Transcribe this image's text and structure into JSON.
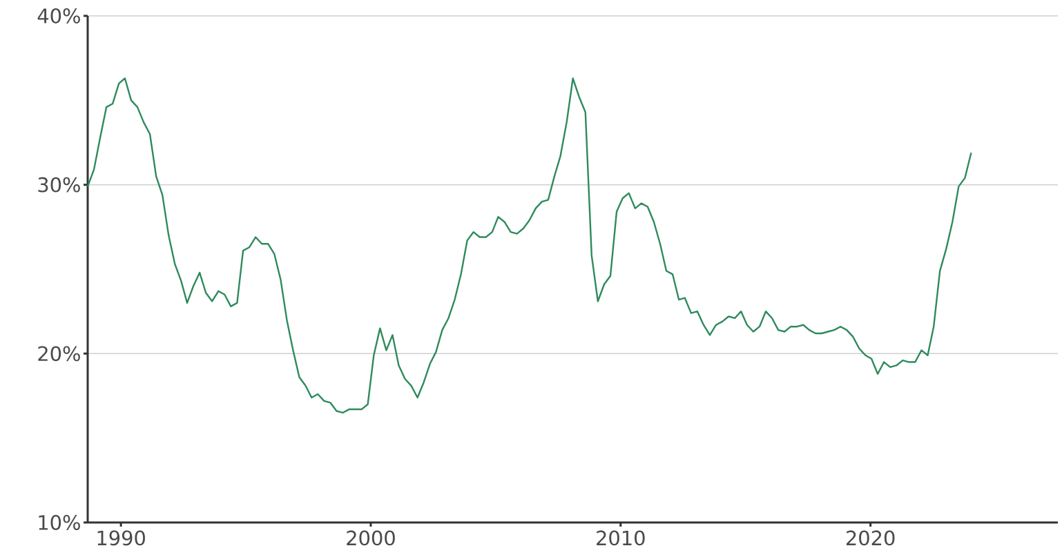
{
  "chart_data": {
    "type": "line",
    "x": [
      1988.67,
      1988.92,
      1989.17,
      1989.42,
      1989.67,
      1989.92,
      1990.16,
      1990.41,
      1990.66,
      1990.91,
      1991.16,
      1991.41,
      1991.66,
      1991.91,
      1992.16,
      1992.41,
      1992.65,
      1992.9,
      1993.15,
      1993.4,
      1993.65,
      1993.9,
      1994.15,
      1994.4,
      1994.65,
      1994.89,
      1995.14,
      1995.39,
      1995.64,
      1995.89,
      1996.14,
      1996.39,
      1996.64,
      1996.89,
      1997.14,
      1997.39,
      1997.63,
      1997.88,
      1998.13,
      1998.38,
      1998.63,
      1998.88,
      1999.13,
      1999.38,
      1999.63,
      1999.88,
      2000.12,
      2000.37,
      2000.62,
      2000.87,
      2001.12,
      2001.37,
      2001.62,
      2001.87,
      2002.12,
      2002.37,
      2002.61,
      2002.86,
      2003.11,
      2003.36,
      2003.61,
      2003.86,
      2004.11,
      2004.36,
      2004.61,
      2004.86,
      2005.1,
      2005.35,
      2005.6,
      2005.85,
      2006.1,
      2006.35,
      2006.6,
      2006.85,
      2007.1,
      2007.35,
      2007.59,
      2007.84,
      2008.09,
      2008.34,
      2008.59,
      2008.84,
      2009.09,
      2009.34,
      2009.59,
      2009.84,
      2010.08,
      2010.33,
      2010.58,
      2010.83,
      2011.08,
      2011.33,
      2011.58,
      2011.83,
      2012.08,
      2012.33,
      2012.57,
      2012.82,
      2013.07,
      2013.32,
      2013.57,
      2013.82,
      2014.07,
      2014.32,
      2014.57,
      2014.82,
      2015.06,
      2015.31,
      2015.56,
      2015.81,
      2016.06,
      2016.31,
      2016.56,
      2016.81,
      2017.06,
      2017.31,
      2017.55,
      2017.8,
      2018.05,
      2018.3,
      2018.55,
      2018.8,
      2019.05,
      2019.3,
      2019.55,
      2019.8,
      2020.04,
      2020.29,
      2020.54,
      2020.79,
      2021.04,
      2021.29,
      2021.54,
      2021.79,
      2022.04,
      2022.29,
      2022.53,
      2022.78,
      2023.03,
      2023.28,
      2023.53,
      2023.78,
      2024.03
    ],
    "values": [
      29.9,
      30.9,
      32.8,
      34.6,
      34.8,
      36.0,
      36.3,
      35.0,
      34.6,
      33.7,
      33.0,
      30.5,
      29.4,
      27.0,
      25.3,
      24.3,
      23.0,
      24.0,
      24.8,
      23.6,
      23.1,
      23.7,
      23.5,
      22.8,
      23.0,
      26.1,
      26.3,
      26.9,
      26.5,
      26.5,
      25.9,
      24.4,
      22.0,
      20.2,
      18.6,
      18.1,
      17.4,
      17.6,
      17.2,
      17.1,
      16.6,
      16.5,
      16.7,
      16.7,
      16.7,
      17.0,
      19.9,
      21.5,
      20.2,
      21.1,
      19.3,
      18.5,
      18.1,
      17.4,
      18.3,
      19.4,
      20.1,
      21.4,
      22.1,
      23.2,
      24.7,
      26.7,
      27.2,
      26.9,
      26.9,
      27.2,
      28.1,
      27.8,
      27.2,
      27.1,
      27.4,
      27.9,
      28.6,
      29.0,
      29.1,
      30.5,
      31.7,
      33.7,
      36.3,
      35.2,
      34.3,
      25.8,
      23.1,
      24.1,
      24.6,
      28.4,
      29.2,
      29.5,
      28.6,
      28.9,
      28.7,
      27.8,
      26.5,
      24.9,
      24.7,
      23.2,
      23.3,
      22.4,
      22.5,
      21.7,
      21.1,
      21.7,
      21.9,
      22.2,
      22.1,
      22.5,
      21.7,
      21.3,
      21.6,
      22.5,
      22.1,
      21.4,
      21.3,
      21.6,
      21.6,
      21.7,
      21.4,
      21.2,
      21.2,
      21.3,
      21.4,
      21.6,
      21.4,
      21.0,
      20.3,
      19.9,
      19.7,
      18.8,
      19.5,
      19.2,
      19.3,
      19.6,
      19.5,
      19.5,
      20.2,
      19.9,
      21.6,
      24.9,
      26.2,
      27.8,
      29.9,
      30.4,
      31.9
    ],
    "color": "#2e8a5c",
    "xlim": [
      1988.67,
      2027.5
    ],
    "ylim": [
      10,
      40
    ],
    "xticks": [
      1990,
      2000,
      2010,
      2020
    ],
    "yticks": [
      {
        "value": 10,
        "label": "10%"
      },
      {
        "value": 20,
        "label": "20%"
      },
      {
        "value": 30,
        "label": "30%"
      },
      {
        "value": 40,
        "label": "40%"
      }
    ],
    "grid": "y"
  }
}
